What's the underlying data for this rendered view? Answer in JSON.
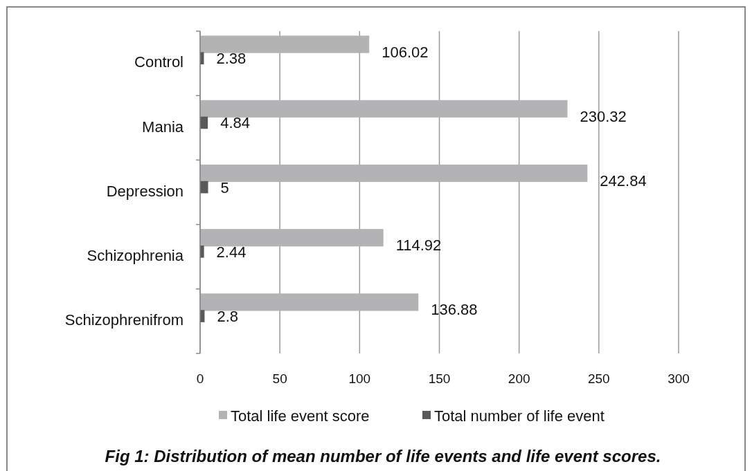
{
  "chart_data": {
    "type": "bar",
    "orientation": "horizontal",
    "title": "Fig 1: Distribution of mean number of life events and life event scores.",
    "categories": [
      "Control",
      "Mania",
      "Depression",
      "Schizophrenia",
      "Schizophrenifrom"
    ],
    "series": [
      {
        "name": "Total life event score",
        "color": "#b3b3b5",
        "values": [
          106.02,
          230.32,
          242.84,
          114.92,
          136.88
        ]
      },
      {
        "name": "Total number of life event",
        "color": "#59595b",
        "values": [
          2.38,
          4.84,
          5,
          2.44,
          2.8
        ]
      }
    ],
    "xlim": [
      0,
      300
    ],
    "xticks": [
      0,
      50,
      100,
      150,
      200,
      250,
      300
    ],
    "grid": "x",
    "legend": "bottom",
    "data_labels": true
  }
}
